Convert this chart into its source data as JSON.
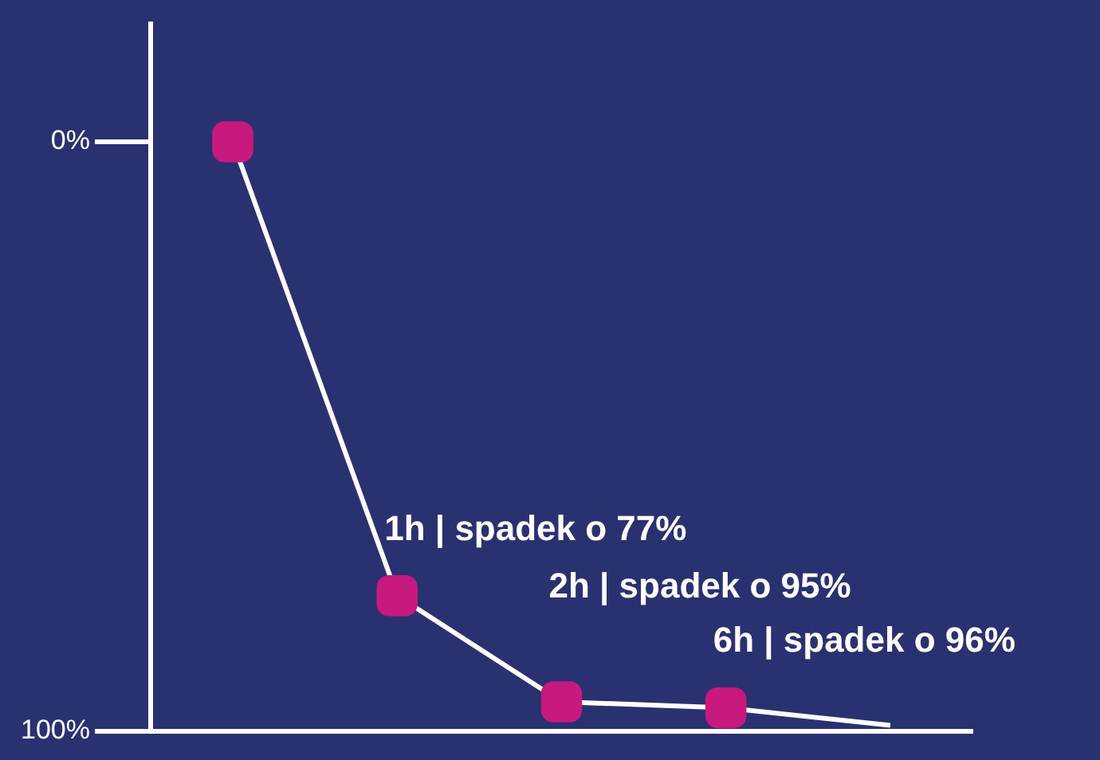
{
  "chart_data": {
    "type": "line",
    "categories": [
      null,
      null,
      null,
      null,
      null
    ],
    "series": [
      {
        "color": "#ffffff",
        "values": [
          0,
          77,
          95,
          96,
          99
        ],
        "colors": [
          "#c8197f",
          "#c8197f",
          "#c8197f",
          "#c8197f",
          null
        ],
        "value_labels": [
          null,
          "1h | spadek o 77%",
          "2h | spadek o 95%",
          "6h | spadek o 96%",
          null
        ]
      }
    ],
    "ylim": [
      100,
      -20
    ],
    "yticks": [
      {
        "value": 0,
        "label": "0%"
      },
      {
        "value": 100,
        "label": "100%"
      }
    ],
    "tick_labels": "y",
    "grid": false,
    "legend": false,
    "marker": "square",
    "line_style": "solid"
  }
}
